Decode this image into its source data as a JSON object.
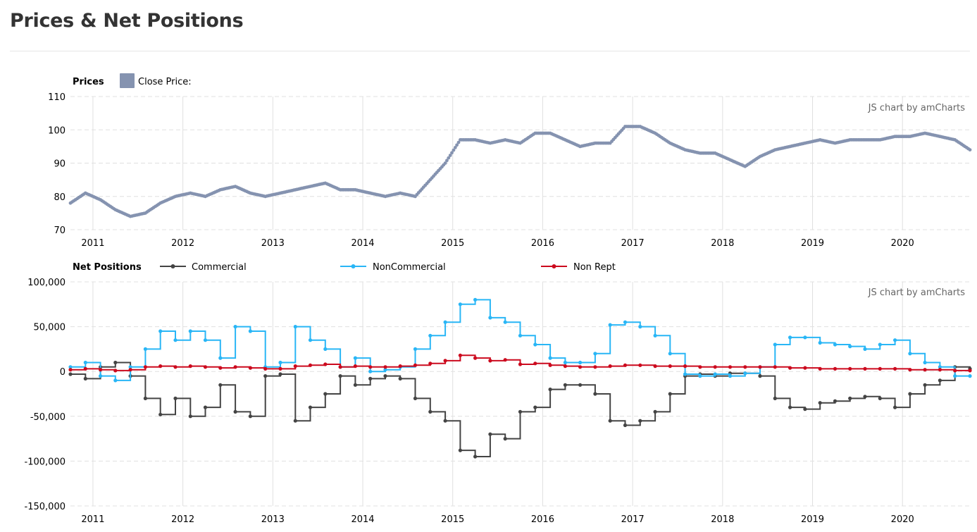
{
  "page": {
    "title": "Prices & Net Positions"
  },
  "colors": {
    "price": "#8593b0",
    "price_down": "#e0564f",
    "commercial": "#444444",
    "noncommercial": "#29b6f6",
    "nonrept": "#cc0a1e",
    "grid": "#e0e0e0",
    "divider": "#e6e6e6"
  },
  "chart_data": [
    {
      "id": "prices",
      "type": "scatter",
      "legend_title": "Prices",
      "legend_placement": "top-left",
      "credit": "JS chart by amCharts",
      "x_ticks": [
        "2011",
        "2012",
        "2013",
        "2014",
        "2015",
        "2016",
        "2017",
        "2018",
        "2019",
        "2020"
      ],
      "xlim": [
        "2010-10",
        "2020-10"
      ],
      "y_ticks": [
        "70",
        "80",
        "90",
        "100",
        "110"
      ],
      "ylim": [
        70,
        110
      ],
      "grid": true,
      "series": [
        {
          "name": "Close Price:",
          "color": "#8593b0",
          "x": [
            "2010-10",
            "2010-12",
            "2011-02",
            "2011-04",
            "2011-06",
            "2011-08",
            "2011-10",
            "2011-12",
            "2012-02",
            "2012-04",
            "2012-06",
            "2012-08",
            "2012-10",
            "2012-12",
            "2013-02",
            "2013-04",
            "2013-06",
            "2013-08",
            "2013-10",
            "2013-12",
            "2014-02",
            "2014-04",
            "2014-06",
            "2014-08",
            "2014-10",
            "2014-12",
            "2015-02",
            "2015-04",
            "2015-06",
            "2015-08",
            "2015-10",
            "2015-12",
            "2016-02",
            "2016-04",
            "2016-06",
            "2016-08",
            "2016-10",
            "2016-12",
            "2017-02",
            "2017-04",
            "2017-06",
            "2017-08",
            "2017-10",
            "2017-12",
            "2018-02",
            "2018-04",
            "2018-06",
            "2018-08",
            "2018-10",
            "2018-12",
            "2019-02",
            "2019-04",
            "2019-06",
            "2019-08",
            "2019-10",
            "2019-12",
            "2020-02",
            "2020-04",
            "2020-06",
            "2020-08",
            "2020-10"
          ],
          "y": [
            78,
            81,
            79,
            76,
            74,
            75,
            78,
            80,
            81,
            80,
            82,
            83,
            81,
            80,
            81,
            82,
            83,
            84,
            82,
            82,
            81,
            80,
            81,
            80,
            85,
            90,
            97,
            97,
            96,
            97,
            96,
            99,
            99,
            97,
            95,
            96,
            96,
            101,
            101,
            99,
            96,
            94,
            93,
            93,
            91,
            89,
            92,
            94,
            95,
            96,
            97,
            96,
            97,
            97,
            97,
            98,
            98,
            99,
            98,
            97,
            94
          ]
        }
      ]
    },
    {
      "id": "net-positions",
      "type": "line",
      "legend_title": "Net Positions",
      "legend_placement": "top-left",
      "credit": "JS chart by amCharts",
      "x_ticks": [
        "2011",
        "2012",
        "2013",
        "2014",
        "2015",
        "2016",
        "2017",
        "2018",
        "2019",
        "2020"
      ],
      "xlim": [
        "2010-10",
        "2020-10"
      ],
      "y_ticks": [
        "100,000",
        "50,000",
        "0",
        "-50,000",
        "-100,000",
        "-150,000"
      ],
      "ylim": [
        -150000,
        100000
      ],
      "grid": true,
      "x": [
        "2010-10",
        "2010-12",
        "2011-02",
        "2011-04",
        "2011-06",
        "2011-08",
        "2011-10",
        "2011-12",
        "2012-02",
        "2012-04",
        "2012-06",
        "2012-08",
        "2012-10",
        "2012-12",
        "2013-02",
        "2013-04",
        "2013-06",
        "2013-08",
        "2013-10",
        "2013-12",
        "2014-02",
        "2014-04",
        "2014-06",
        "2014-08",
        "2014-10",
        "2014-12",
        "2015-02",
        "2015-04",
        "2015-06",
        "2015-08",
        "2015-10",
        "2015-12",
        "2016-02",
        "2016-04",
        "2016-06",
        "2016-08",
        "2016-10",
        "2016-12",
        "2017-02",
        "2017-04",
        "2017-06",
        "2017-08",
        "2017-10",
        "2017-12",
        "2018-02",
        "2018-04",
        "2018-06",
        "2018-08",
        "2018-10",
        "2018-12",
        "2019-02",
        "2019-04",
        "2019-06",
        "2019-08",
        "2019-10",
        "2019-12",
        "2020-02",
        "2020-04",
        "2020-06",
        "2020-08",
        "2020-10"
      ],
      "series": [
        {
          "name": "Commercial",
          "color": "#444444",
          "values": [
            -3000,
            -8000,
            5000,
            10000,
            -5000,
            -30000,
            -48000,
            -30000,
            -50000,
            -40000,
            -15000,
            -45000,
            -50000,
            -5000,
            -3000,
            -55000,
            -40000,
            -25000,
            -5000,
            -15000,
            -8000,
            -5000,
            -8000,
            -30000,
            -45000,
            -55000,
            -88000,
            -95000,
            -70000,
            -75000,
            -45000,
            -40000,
            -20000,
            -15000,
            -15000,
            -25000,
            -55000,
            -60000,
            -55000,
            -45000,
            -25000,
            -5000,
            -3000,
            -5000,
            -2000,
            -2000,
            -5000,
            -30000,
            -40000,
            -42000,
            -35000,
            -33000,
            -30000,
            -28000,
            -30000,
            -40000,
            -25000,
            -15000,
            -10000,
            5000,
            3000
          ]
        },
        {
          "name": "NonCommercial",
          "color": "#29b6f6",
          "values": [
            5000,
            10000,
            -5000,
            -10000,
            5000,
            25000,
            45000,
            35000,
            45000,
            35000,
            15000,
            50000,
            45000,
            5000,
            10000,
            50000,
            35000,
            25000,
            5000,
            15000,
            0,
            2000,
            5000,
            25000,
            40000,
            55000,
            75000,
            80000,
            60000,
            55000,
            40000,
            30000,
            15000,
            10000,
            10000,
            20000,
            52000,
            55000,
            50000,
            40000,
            20000,
            -3000,
            -5000,
            -3000,
            -5000,
            -2000,
            5000,
            30000,
            38000,
            38000,
            32000,
            30000,
            28000,
            25000,
            30000,
            35000,
            20000,
            10000,
            5000,
            -5000,
            -5000
          ]
        },
        {
          "name": "Non Rept",
          "color": "#cc0a1e",
          "values": [
            2000,
            3000,
            2000,
            1000,
            2000,
            5000,
            6000,
            5000,
            6000,
            5000,
            4000,
            5000,
            4000,
            3000,
            3000,
            6000,
            7000,
            8000,
            5000,
            6000,
            5000,
            5000,
            6000,
            7000,
            9000,
            12000,
            18000,
            15000,
            12000,
            13000,
            8000,
            9000,
            7000,
            6000,
            5000,
            5000,
            6000,
            7000,
            7000,
            6000,
            6000,
            6000,
            5000,
            5000,
            5000,
            5000,
            5000,
            5000,
            4000,
            4000,
            3000,
            3000,
            3000,
            3000,
            3000,
            3000,
            2000,
            2000,
            2000,
            1000,
            1000
          ]
        }
      ]
    }
  ]
}
